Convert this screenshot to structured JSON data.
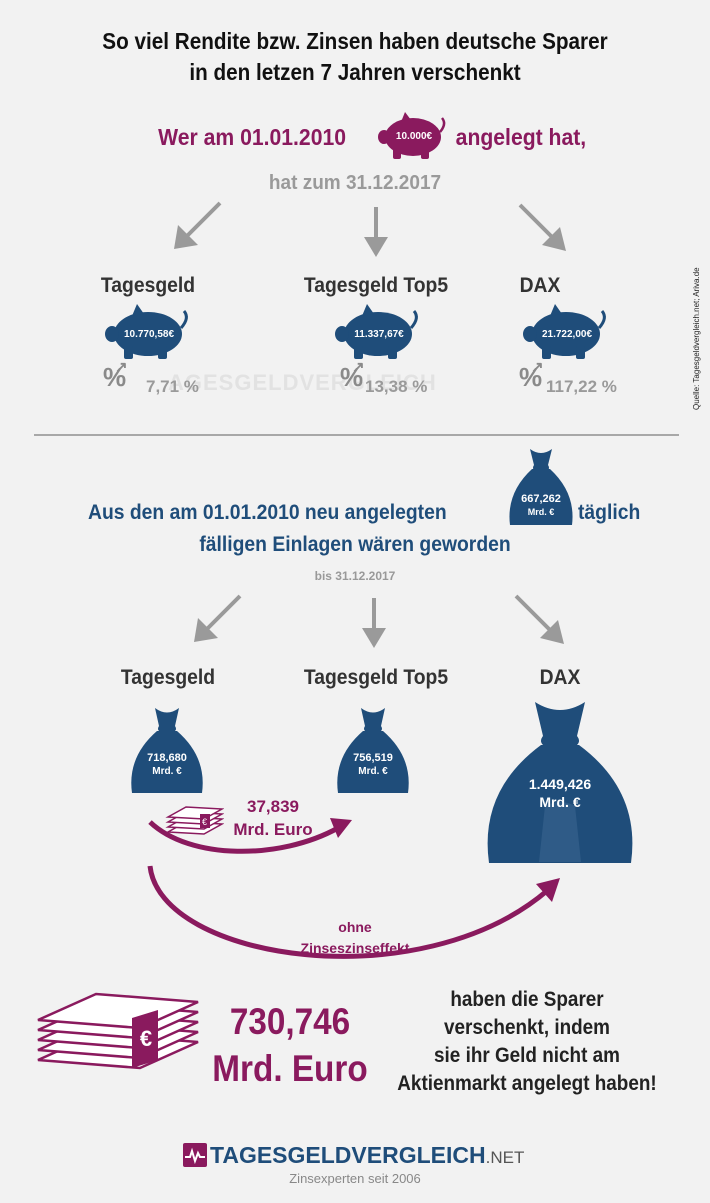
{
  "title_line1": "So viel Rendite bzw. Zinsen haben deutsche Sparer",
  "title_line2": "in den letzen 7 Jahren verschenkt",
  "section1": {
    "intro_before": "Wer am 01.01.2010",
    "pig_amount": "10.000€",
    "intro_after": "angelegt hat,",
    "subline": "hat zum 31.12.2017",
    "items": [
      {
        "label": "Tagesgeld",
        "amount": "10.770,58€",
        "percent": "7,71 %"
      },
      {
        "label": "Tagesgeld Top5",
        "amount": "11.337,67€",
        "percent": "13,38 %"
      },
      {
        "label": "DAX",
        "amount": "21.722,00€",
        "percent": "117,22 %"
      }
    ],
    "watermark": "AGESGELDVERGLEICH",
    "percent_symbol": "%"
  },
  "source": "Quelle: Tagesgeldvergleich.net; Ariva.de",
  "section2": {
    "line1_before": "Aus den am 01.01.2010 neu angelegten",
    "line1_after": "täglich",
    "line2": "fälligen Einlagen wären geworden",
    "sack_amount": "667,262",
    "sack_unit": "Mrd. €",
    "subline": "bis 31.12.2017",
    "items": [
      {
        "label": "Tagesgeld",
        "amount": "718,680",
        "unit": "Mrd. €"
      },
      {
        "label": "Tagesgeld Top5",
        "amount": "756,519",
        "unit": "Mrd. €"
      },
      {
        "label": "DAX",
        "amount": "1.449,426",
        "unit": "Mrd. €"
      }
    ],
    "diff_amount": "37,839",
    "diff_unit": "Mrd. Euro",
    "no_interest_line1": "ohne",
    "no_interest_line2": "Zinseszinseffekt"
  },
  "bottom": {
    "amount": "730,746",
    "unit": "Mrd. Euro",
    "lines": [
      "haben die Sparer",
      "verschenkt, indem",
      "sie ihr Geld nicht am",
      "Aktienmarkt angelegt haben!"
    ],
    "euro_symbol": "€"
  },
  "logo": {
    "name": "TAGESGELDVERGLEICH",
    "suffix": ".NET",
    "tagline": "Zinsexperten seit 2006"
  },
  "colors": {
    "purple": "#8a1a5e",
    "blue": "#1f4d7a",
    "gray": "#9a9a9a"
  }
}
